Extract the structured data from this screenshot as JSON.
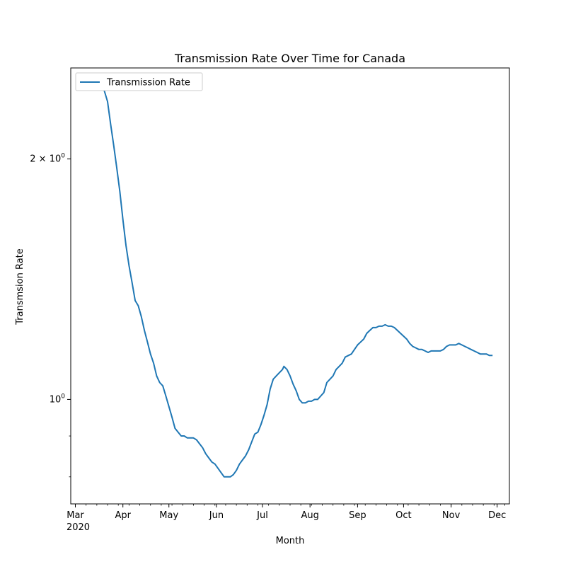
{
  "chart_data": {
    "type": "line",
    "title": "Transmission Rate Over Time for Canada",
    "xlabel": "Month",
    "ylabel": "Transmsion Rate",
    "legend": {
      "placement": "top-left",
      "entries": [
        "Transmission Rate"
      ]
    },
    "y_scale": "log",
    "ylim": [
      0.74,
      2.6
    ],
    "xlim": [
      "2020-02-27",
      "2020-12-09"
    ],
    "grid": false,
    "x_ticks": [
      {
        "date": "2020-03-01",
        "label": "Mar",
        "sublabel": "2020"
      },
      {
        "date": "2020-04-01",
        "label": "Apr"
      },
      {
        "date": "2020-05-01",
        "label": "May"
      },
      {
        "date": "2020-06-01",
        "label": "Jun"
      },
      {
        "date": "2020-07-01",
        "label": "Jul"
      },
      {
        "date": "2020-08-01",
        "label": "Aug"
      },
      {
        "date": "2020-09-01",
        "label": "Sep"
      },
      {
        "date": "2020-10-01",
        "label": "Oct"
      },
      {
        "date": "2020-11-01",
        "label": "Nov"
      },
      {
        "date": "2020-12-01",
        "label": "Dec"
      }
    ],
    "y_ticks_major": [
      {
        "value": 1,
        "label": "10",
        "sup": "0"
      },
      {
        "value": 2,
        "label": "2 × 10",
        "sup": "0"
      }
    ],
    "y_ticks_minor": [
      0.8,
      0.9
    ],
    "series": [
      {
        "name": "Transmission Rate",
        "color": "#1f77b4",
        "points": [
          [
            "2020-03-11",
            2.48
          ],
          [
            "2020-03-12",
            2.51
          ],
          [
            "2020-03-13",
            2.5
          ],
          [
            "2020-03-14",
            2.53
          ],
          [
            "2020-03-15",
            2.55
          ],
          [
            "2020-03-16",
            2.53
          ],
          [
            "2020-03-18",
            2.48
          ],
          [
            "2020-03-20",
            2.43
          ],
          [
            "2020-03-22",
            2.36
          ],
          [
            "2020-03-24",
            2.21
          ],
          [
            "2020-03-26",
            2.08
          ],
          [
            "2020-03-28",
            1.95
          ],
          [
            "2020-03-30",
            1.82
          ],
          [
            "2020-04-01",
            1.68
          ],
          [
            "2020-04-03",
            1.56
          ],
          [
            "2020-04-05",
            1.47
          ],
          [
            "2020-04-07",
            1.4
          ],
          [
            "2020-04-09",
            1.33
          ],
          [
            "2020-04-11",
            1.31
          ],
          [
            "2020-04-13",
            1.27
          ],
          [
            "2020-04-15",
            1.22
          ],
          [
            "2020-04-17",
            1.18
          ],
          [
            "2020-04-19",
            1.14
          ],
          [
            "2020-04-21",
            1.11
          ],
          [
            "2020-04-23",
            1.07
          ],
          [
            "2020-04-25",
            1.05
          ],
          [
            "2020-04-27",
            1.04
          ],
          [
            "2020-04-29",
            1.01
          ],
          [
            "2020-05-01",
            0.98
          ],
          [
            "2020-05-03",
            0.95
          ],
          [
            "2020-05-05",
            0.92
          ],
          [
            "2020-05-07",
            0.91
          ],
          [
            "2020-05-09",
            0.9
          ],
          [
            "2020-05-11",
            0.9
          ],
          [
            "2020-05-13",
            0.895
          ],
          [
            "2020-05-15",
            0.895
          ],
          [
            "2020-05-17",
            0.895
          ],
          [
            "2020-05-19",
            0.89
          ],
          [
            "2020-05-21",
            0.88
          ],
          [
            "2020-05-23",
            0.87
          ],
          [
            "2020-05-25",
            0.855
          ],
          [
            "2020-05-27",
            0.845
          ],
          [
            "2020-05-29",
            0.835
          ],
          [
            "2020-05-31",
            0.83
          ],
          [
            "2020-06-02",
            0.82
          ],
          [
            "2020-06-04",
            0.81
          ],
          [
            "2020-06-06",
            0.8
          ],
          [
            "2020-06-08",
            0.8
          ],
          [
            "2020-06-10",
            0.8
          ],
          [
            "2020-06-12",
            0.805
          ],
          [
            "2020-06-14",
            0.815
          ],
          [
            "2020-06-16",
            0.83
          ],
          [
            "2020-06-18",
            0.84
          ],
          [
            "2020-06-20",
            0.85
          ],
          [
            "2020-06-22",
            0.865
          ],
          [
            "2020-06-24",
            0.885
          ],
          [
            "2020-06-26",
            0.905
          ],
          [
            "2020-06-28",
            0.91
          ],
          [
            "2020-06-30",
            0.93
          ],
          [
            "2020-07-02",
            0.955
          ],
          [
            "2020-07-04",
            0.985
          ],
          [
            "2020-07-06",
            1.03
          ],
          [
            "2020-07-08",
            1.06
          ],
          [
            "2020-07-10",
            1.07
          ],
          [
            "2020-07-12",
            1.08
          ],
          [
            "2020-07-14",
            1.09
          ],
          [
            "2020-07-15",
            1.1
          ],
          [
            "2020-07-17",
            1.09
          ],
          [
            "2020-07-19",
            1.07
          ],
          [
            "2020-07-21",
            1.045
          ],
          [
            "2020-07-23",
            1.025
          ],
          [
            "2020-07-25",
            1.0
          ],
          [
            "2020-07-27",
            0.99
          ],
          [
            "2020-07-29",
            0.99
          ],
          [
            "2020-07-31",
            0.995
          ],
          [
            "2020-08-02",
            0.995
          ],
          [
            "2020-08-04",
            1.0
          ],
          [
            "2020-08-06",
            1.0
          ],
          [
            "2020-08-08",
            1.01
          ],
          [
            "2020-08-10",
            1.02
          ],
          [
            "2020-08-12",
            1.05
          ],
          [
            "2020-08-14",
            1.06
          ],
          [
            "2020-08-16",
            1.07
          ],
          [
            "2020-08-18",
            1.09
          ],
          [
            "2020-08-20",
            1.1
          ],
          [
            "2020-08-22",
            1.11
          ],
          [
            "2020-08-24",
            1.13
          ],
          [
            "2020-08-26",
            1.135
          ],
          [
            "2020-08-28",
            1.14
          ],
          [
            "2020-08-30",
            1.155
          ],
          [
            "2020-09-01",
            1.17
          ],
          [
            "2020-09-03",
            1.18
          ],
          [
            "2020-09-05",
            1.19
          ],
          [
            "2020-09-07",
            1.21
          ],
          [
            "2020-09-09",
            1.22
          ],
          [
            "2020-09-11",
            1.23
          ],
          [
            "2020-09-13",
            1.23
          ],
          [
            "2020-09-15",
            1.235
          ],
          [
            "2020-09-17",
            1.235
          ],
          [
            "2020-09-19",
            1.24
          ],
          [
            "2020-09-21",
            1.235
          ],
          [
            "2020-09-23",
            1.235
          ],
          [
            "2020-09-25",
            1.23
          ],
          [
            "2020-09-27",
            1.22
          ],
          [
            "2020-09-29",
            1.21
          ],
          [
            "2020-10-01",
            1.2
          ],
          [
            "2020-10-03",
            1.19
          ],
          [
            "2020-10-05",
            1.175
          ],
          [
            "2020-10-07",
            1.165
          ],
          [
            "2020-10-09",
            1.16
          ],
          [
            "2020-10-11",
            1.155
          ],
          [
            "2020-10-13",
            1.155
          ],
          [
            "2020-10-15",
            1.15
          ],
          [
            "2020-10-17",
            1.145
          ],
          [
            "2020-10-19",
            1.15
          ],
          [
            "2020-10-21",
            1.15
          ],
          [
            "2020-10-23",
            1.15
          ],
          [
            "2020-10-25",
            1.15
          ],
          [
            "2020-10-27",
            1.155
          ],
          [
            "2020-10-29",
            1.165
          ],
          [
            "2020-10-31",
            1.17
          ],
          [
            "2020-11-02",
            1.17
          ],
          [
            "2020-11-04",
            1.17
          ],
          [
            "2020-11-06",
            1.175
          ],
          [
            "2020-11-08",
            1.17
          ],
          [
            "2020-11-10",
            1.165
          ],
          [
            "2020-11-12",
            1.16
          ],
          [
            "2020-11-14",
            1.155
          ],
          [
            "2020-11-16",
            1.15
          ],
          [
            "2020-11-18",
            1.145
          ],
          [
            "2020-11-20",
            1.14
          ],
          [
            "2020-11-22",
            1.14
          ],
          [
            "2020-11-24",
            1.14
          ],
          [
            "2020-11-26",
            1.135
          ],
          [
            "2020-11-28",
            1.135
          ]
        ]
      }
    ]
  }
}
